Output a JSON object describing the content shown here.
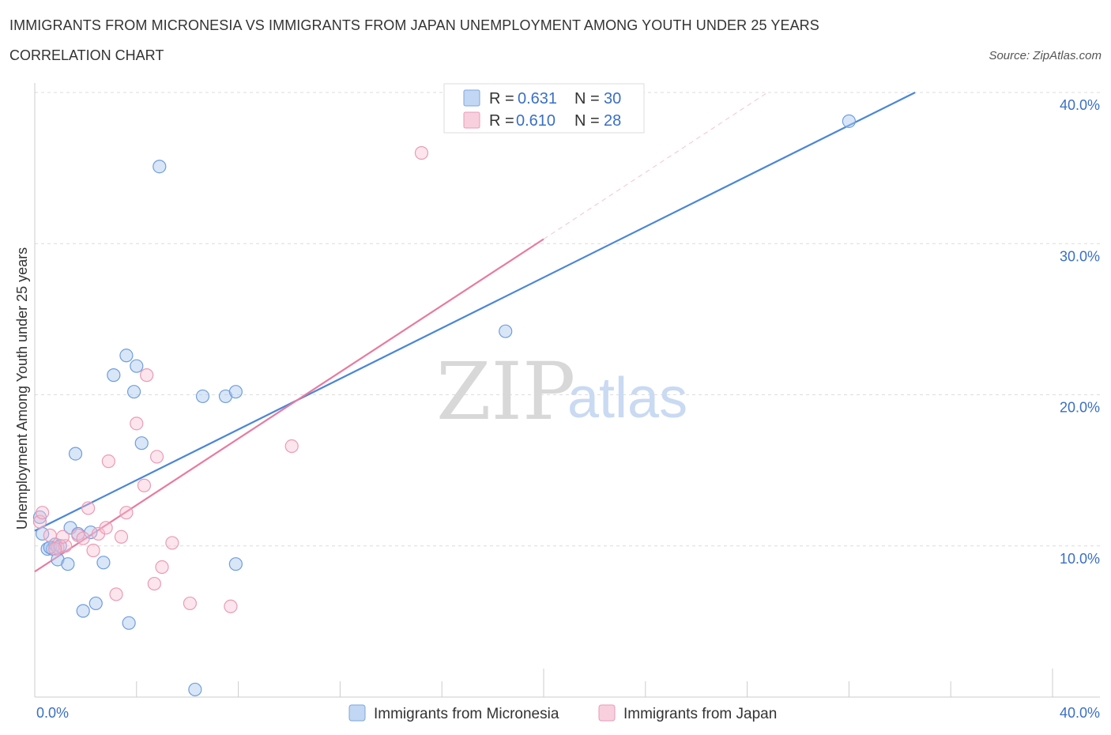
{
  "header": {
    "title": "IMMIGRANTS FROM MICRONESIA VS IMMIGRANTS FROM JAPAN UNEMPLOYMENT AMONG YOUTH UNDER 25 YEARS",
    "subtitle": "CORRELATION CHART",
    "source": "Source: ZipAtlas.com"
  },
  "watermark": {
    "zip": "ZIP",
    "atlas": "atlas"
  },
  "stats": [
    {
      "r_label": "R =",
      "r_value": "0.631",
      "n_label": "N =",
      "n_value": "30"
    },
    {
      "r_label": "R =",
      "r_value": "0.610",
      "n_label": "N =",
      "n_value": "28"
    }
  ],
  "chart_data": {
    "type": "scatter",
    "ylabel": "Unemployment Among Youth under 25 years",
    "xlim": [
      0,
      40
    ],
    "ylim": [
      0,
      40
    ],
    "x_tick_labels": [
      "0.0%",
      "40.0%"
    ],
    "y_ticks": [
      10,
      20,
      30,
      40
    ],
    "y_tick_labels": [
      "10.0%",
      "20.0%",
      "30.0%",
      "40.0%"
    ],
    "grid": true,
    "legend_position": "bottom",
    "colors": {
      "micronesia": "#4a86d8",
      "japan": "#e87aa0"
    },
    "series": [
      {
        "name": "Immigrants from Micronesia",
        "points": [
          [
            0.2,
            11.9
          ],
          [
            0.3,
            10.8
          ],
          [
            0.5,
            9.8
          ],
          [
            0.7,
            9.8
          ],
          [
            0.8,
            10.1
          ],
          [
            0.9,
            9.1
          ],
          [
            1.3,
            8.8
          ],
          [
            1.4,
            11.2
          ],
          [
            1.6,
            16.1
          ],
          [
            1.7,
            10.8
          ],
          [
            1.9,
            5.7
          ],
          [
            2.2,
            10.9
          ],
          [
            2.4,
            6.2
          ],
          [
            2.7,
            8.9
          ],
          [
            3.1,
            21.3
          ],
          [
            3.6,
            22.6
          ],
          [
            3.7,
            4.9
          ],
          [
            3.9,
            20.2
          ],
          [
            4.0,
            21.9
          ],
          [
            4.2,
            16.8
          ],
          [
            4.9,
            35.1
          ],
          [
            6.3,
            0.5
          ],
          [
            6.6,
            19.9
          ],
          [
            7.5,
            19.9
          ],
          [
            7.9,
            20.2
          ],
          [
            7.9,
            8.8
          ],
          [
            18.5,
            24.2
          ],
          [
            32.0,
            38.1
          ],
          [
            0.6,
            9.9
          ],
          [
            1.0,
            10.0
          ]
        ],
        "trend": {
          "x": [
            0,
            34.6
          ],
          "y": [
            11.0,
            40.0
          ]
        }
      },
      {
        "name": "Immigrants from Japan",
        "points": [
          [
            0.2,
            11.6
          ],
          [
            0.3,
            12.2
          ],
          [
            0.6,
            10.7
          ],
          [
            0.9,
            9.9
          ],
          [
            1.2,
            10.0
          ],
          [
            1.7,
            10.7
          ],
          [
            1.9,
            10.5
          ],
          [
            2.1,
            12.5
          ],
          [
            2.3,
            9.7
          ],
          [
            2.5,
            10.8
          ],
          [
            2.8,
            11.2
          ],
          [
            2.9,
            15.6
          ],
          [
            3.2,
            6.8
          ],
          [
            3.4,
            10.6
          ],
          [
            3.6,
            12.2
          ],
          [
            4.0,
            18.1
          ],
          [
            4.3,
            14.0
          ],
          [
            4.4,
            21.3
          ],
          [
            4.7,
            7.5
          ],
          [
            4.8,
            15.9
          ],
          [
            5.0,
            8.6
          ],
          [
            5.4,
            10.2
          ],
          [
            6.1,
            6.2
          ],
          [
            7.7,
            6.0
          ],
          [
            10.1,
            16.6
          ],
          [
            15.2,
            36.0
          ],
          [
            1.1,
            10.6
          ],
          [
            0.8,
            9.8
          ]
        ],
        "trend": {
          "x": [
            0,
            20.0
          ],
          "y": [
            8.3,
            30.3
          ]
        },
        "trend_extension": {
          "x": [
            20.0,
            28.8
          ],
          "y": [
            30.3,
            40.0
          ]
        }
      }
    ]
  }
}
